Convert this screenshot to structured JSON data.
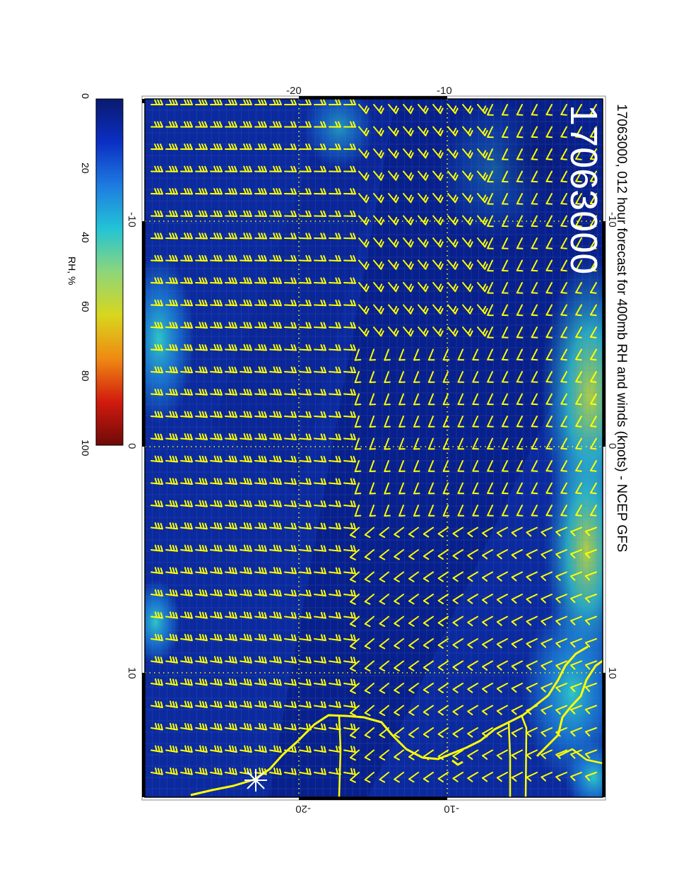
{
  "figure": {
    "title": "17063000, 012 hour forecast for 400mb RH and winds (knots) - NCEP GFS",
    "date_stamp": "17063000"
  },
  "colorbar": {
    "label": "RH, %",
    "ticks": [
      "0",
      "20",
      "40",
      "60",
      "80",
      "100"
    ],
    "stops": [
      "#0a1a6e",
      "#0b2fc4",
      "#1e7be0",
      "#22c4d6",
      "#8ed67a",
      "#d8d61e",
      "#ef8a12",
      "#d11a0e",
      "#6e0a08"
    ]
  },
  "axes": {
    "top_ticks": [
      "-20",
      "-10"
    ],
    "bottom_ticks": [
      "-20",
      "-10"
    ],
    "left_ticks": [
      "-10",
      "0",
      "10"
    ],
    "right_ticks": [
      "-10",
      "0",
      "10"
    ]
  },
  "colors": {
    "overlay": "#ffff00",
    "field_base": "#0b2a9e",
    "frame": "#000000"
  },
  "legend_icons": [
    "wind-barb-icon",
    "sun-marker-icon",
    "coastline"
  ]
}
